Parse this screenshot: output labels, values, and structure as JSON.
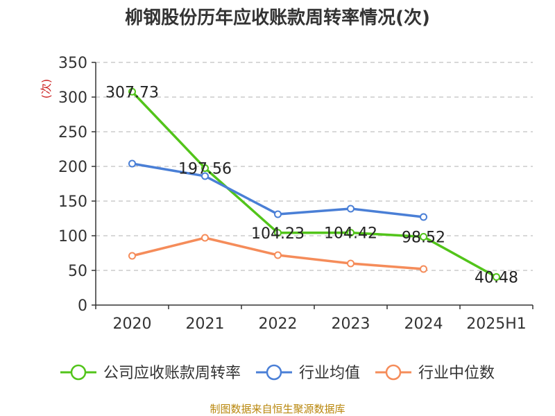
{
  "chart_data": {
    "type": "line",
    "title": "柳钢股份历年应收账款周转率情况(次)",
    "ylabel": "(次)",
    "ylim": [
      0,
      350
    ],
    "yticks": [
      0,
      50,
      100,
      150,
      200,
      250,
      300,
      350
    ],
    "categories": [
      "2020",
      "2021",
      "2022",
      "2023",
      "2024",
      "2025H1"
    ],
    "grid": true,
    "legend_position": "bottom",
    "series": [
      {
        "name": "公司应收账款周转率",
        "color": "#52c41a",
        "labeled": true,
        "values": [
          307.73,
          197.56,
          104.23,
          104.42,
          98.52,
          40.48
        ]
      },
      {
        "name": "行业均值",
        "color": "#4a7fd6",
        "labeled": false,
        "values": [
          204,
          186,
          131,
          139,
          127,
          null
        ]
      },
      {
        "name": "行业中位数",
        "color": "#f58c5a",
        "labeled": false,
        "values": [
          71,
          97,
          72,
          60,
          52,
          null
        ]
      }
    ],
    "source": "制图数据来自恒生聚源数据库"
  }
}
